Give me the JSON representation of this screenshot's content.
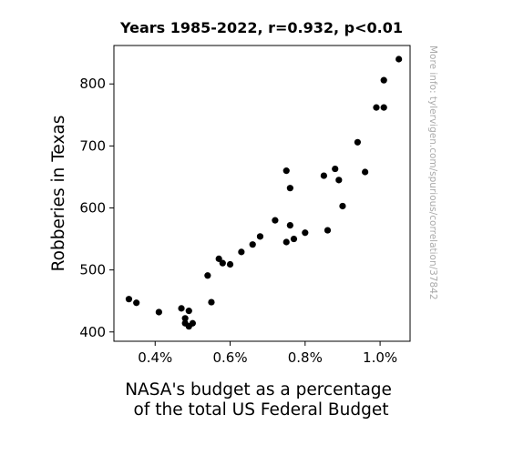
{
  "chart_data": {
    "type": "scatter",
    "title": "Years 1985-2022, r=0.932, p<0.01",
    "xlabel_lines": [
      "NASA's budget as a percentage",
      "of the total US Federal Budget"
    ],
    "ylabel": "Robberies in Texas",
    "side_note": "More info: tylervigen.com/spurious/correlation/37842",
    "xlim": [
      0.29,
      1.08
    ],
    "ylim": [
      385,
      862
    ],
    "xticks": [
      {
        "value": 0.4,
        "label": "0.4%"
      },
      {
        "value": 0.6,
        "label": "0.6%"
      },
      {
        "value": 0.8,
        "label": "0.8%"
      },
      {
        "value": 1.0,
        "label": "1.0%"
      }
    ],
    "yticks": [
      {
        "value": 400,
        "label": "400"
      },
      {
        "value": 500,
        "label": "500"
      },
      {
        "value": 600,
        "label": "600"
      },
      {
        "value": 700,
        "label": "700"
      },
      {
        "value": 800,
        "label": "800"
      }
    ],
    "grid": false,
    "marker_color": "#000000",
    "side_note_color": "#aaaaaa",
    "points": [
      {
        "x": 1.05,
        "y": 840
      },
      {
        "x": 1.01,
        "y": 806
      },
      {
        "x": 0.99,
        "y": 762
      },
      {
        "x": 1.01,
        "y": 762
      },
      {
        "x": 0.94,
        "y": 706
      },
      {
        "x": 0.96,
        "y": 658
      },
      {
        "x": 0.88,
        "y": 663
      },
      {
        "x": 0.85,
        "y": 652
      },
      {
        "x": 0.89,
        "y": 645
      },
      {
        "x": 0.75,
        "y": 660
      },
      {
        "x": 0.76,
        "y": 632
      },
      {
        "x": 0.9,
        "y": 603
      },
      {
        "x": 0.72,
        "y": 580
      },
      {
        "x": 0.76,
        "y": 572
      },
      {
        "x": 0.86,
        "y": 564
      },
      {
        "x": 0.8,
        "y": 560
      },
      {
        "x": 0.77,
        "y": 550
      },
      {
        "x": 0.75,
        "y": 545
      },
      {
        "x": 0.68,
        "y": 554
      },
      {
        "x": 0.66,
        "y": 541
      },
      {
        "x": 0.63,
        "y": 529
      },
      {
        "x": 0.57,
        "y": 518
      },
      {
        "x": 0.58,
        "y": 511
      },
      {
        "x": 0.6,
        "y": 509
      },
      {
        "x": 0.54,
        "y": 491
      },
      {
        "x": 0.55,
        "y": 448
      },
      {
        "x": 0.33,
        "y": 453
      },
      {
        "x": 0.35,
        "y": 447
      },
      {
        "x": 0.41,
        "y": 432
      },
      {
        "x": 0.47,
        "y": 438
      },
      {
        "x": 0.49,
        "y": 434
      },
      {
        "x": 0.48,
        "y": 422
      },
      {
        "x": 0.48,
        "y": 414
      },
      {
        "x": 0.5,
        "y": 414
      },
      {
        "x": 0.49,
        "y": 409
      }
    ]
  }
}
